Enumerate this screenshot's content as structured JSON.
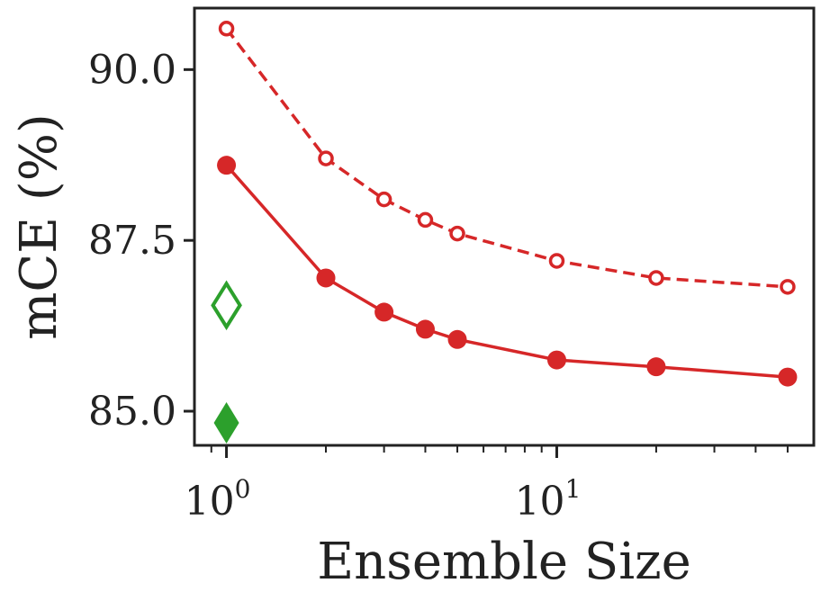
{
  "chart_data": {
    "type": "line",
    "title": "",
    "xlabel": "Ensemble Size",
    "ylabel": "mCE (%)",
    "xscale": "log",
    "xlim": [
      0.8,
      60
    ],
    "ylim": [
      84.5,
      90.9
    ],
    "grid": false,
    "legend": "none",
    "x_ticks": [
      {
        "value": 1,
        "base": "10",
        "exp": "0"
      },
      {
        "value": 10,
        "base": "10",
        "exp": "1"
      }
    ],
    "y_ticks": [
      {
        "value": 85.0,
        "label": "85.0"
      },
      {
        "value": 87.5,
        "label": "87.5"
      },
      {
        "value": 90.0,
        "label": "90.0"
      }
    ],
    "series": [
      {
        "style": "dashed-hollow-circle",
        "color": "#d62728",
        "x": [
          1,
          2,
          3,
          4,
          5,
          10,
          20,
          50
        ],
        "y": [
          90.6,
          88.7,
          88.1,
          87.8,
          87.6,
          87.2,
          86.95,
          86.82
        ]
      },
      {
        "style": "solid-filled-circle",
        "color": "#d62728",
        "x": [
          1,
          2,
          3,
          4,
          5,
          10,
          20,
          50
        ],
        "y": [
          88.6,
          86.95,
          86.45,
          86.2,
          86.05,
          85.75,
          85.65,
          85.5
        ]
      },
      {
        "style": "hollow-diamond",
        "color": "#2ca02c",
        "x": [
          1
        ],
        "y": [
          86.55
        ]
      },
      {
        "style": "filled-diamond",
        "color": "#2ca02c",
        "x": [
          1
        ],
        "y": [
          84.83
        ]
      }
    ]
  }
}
